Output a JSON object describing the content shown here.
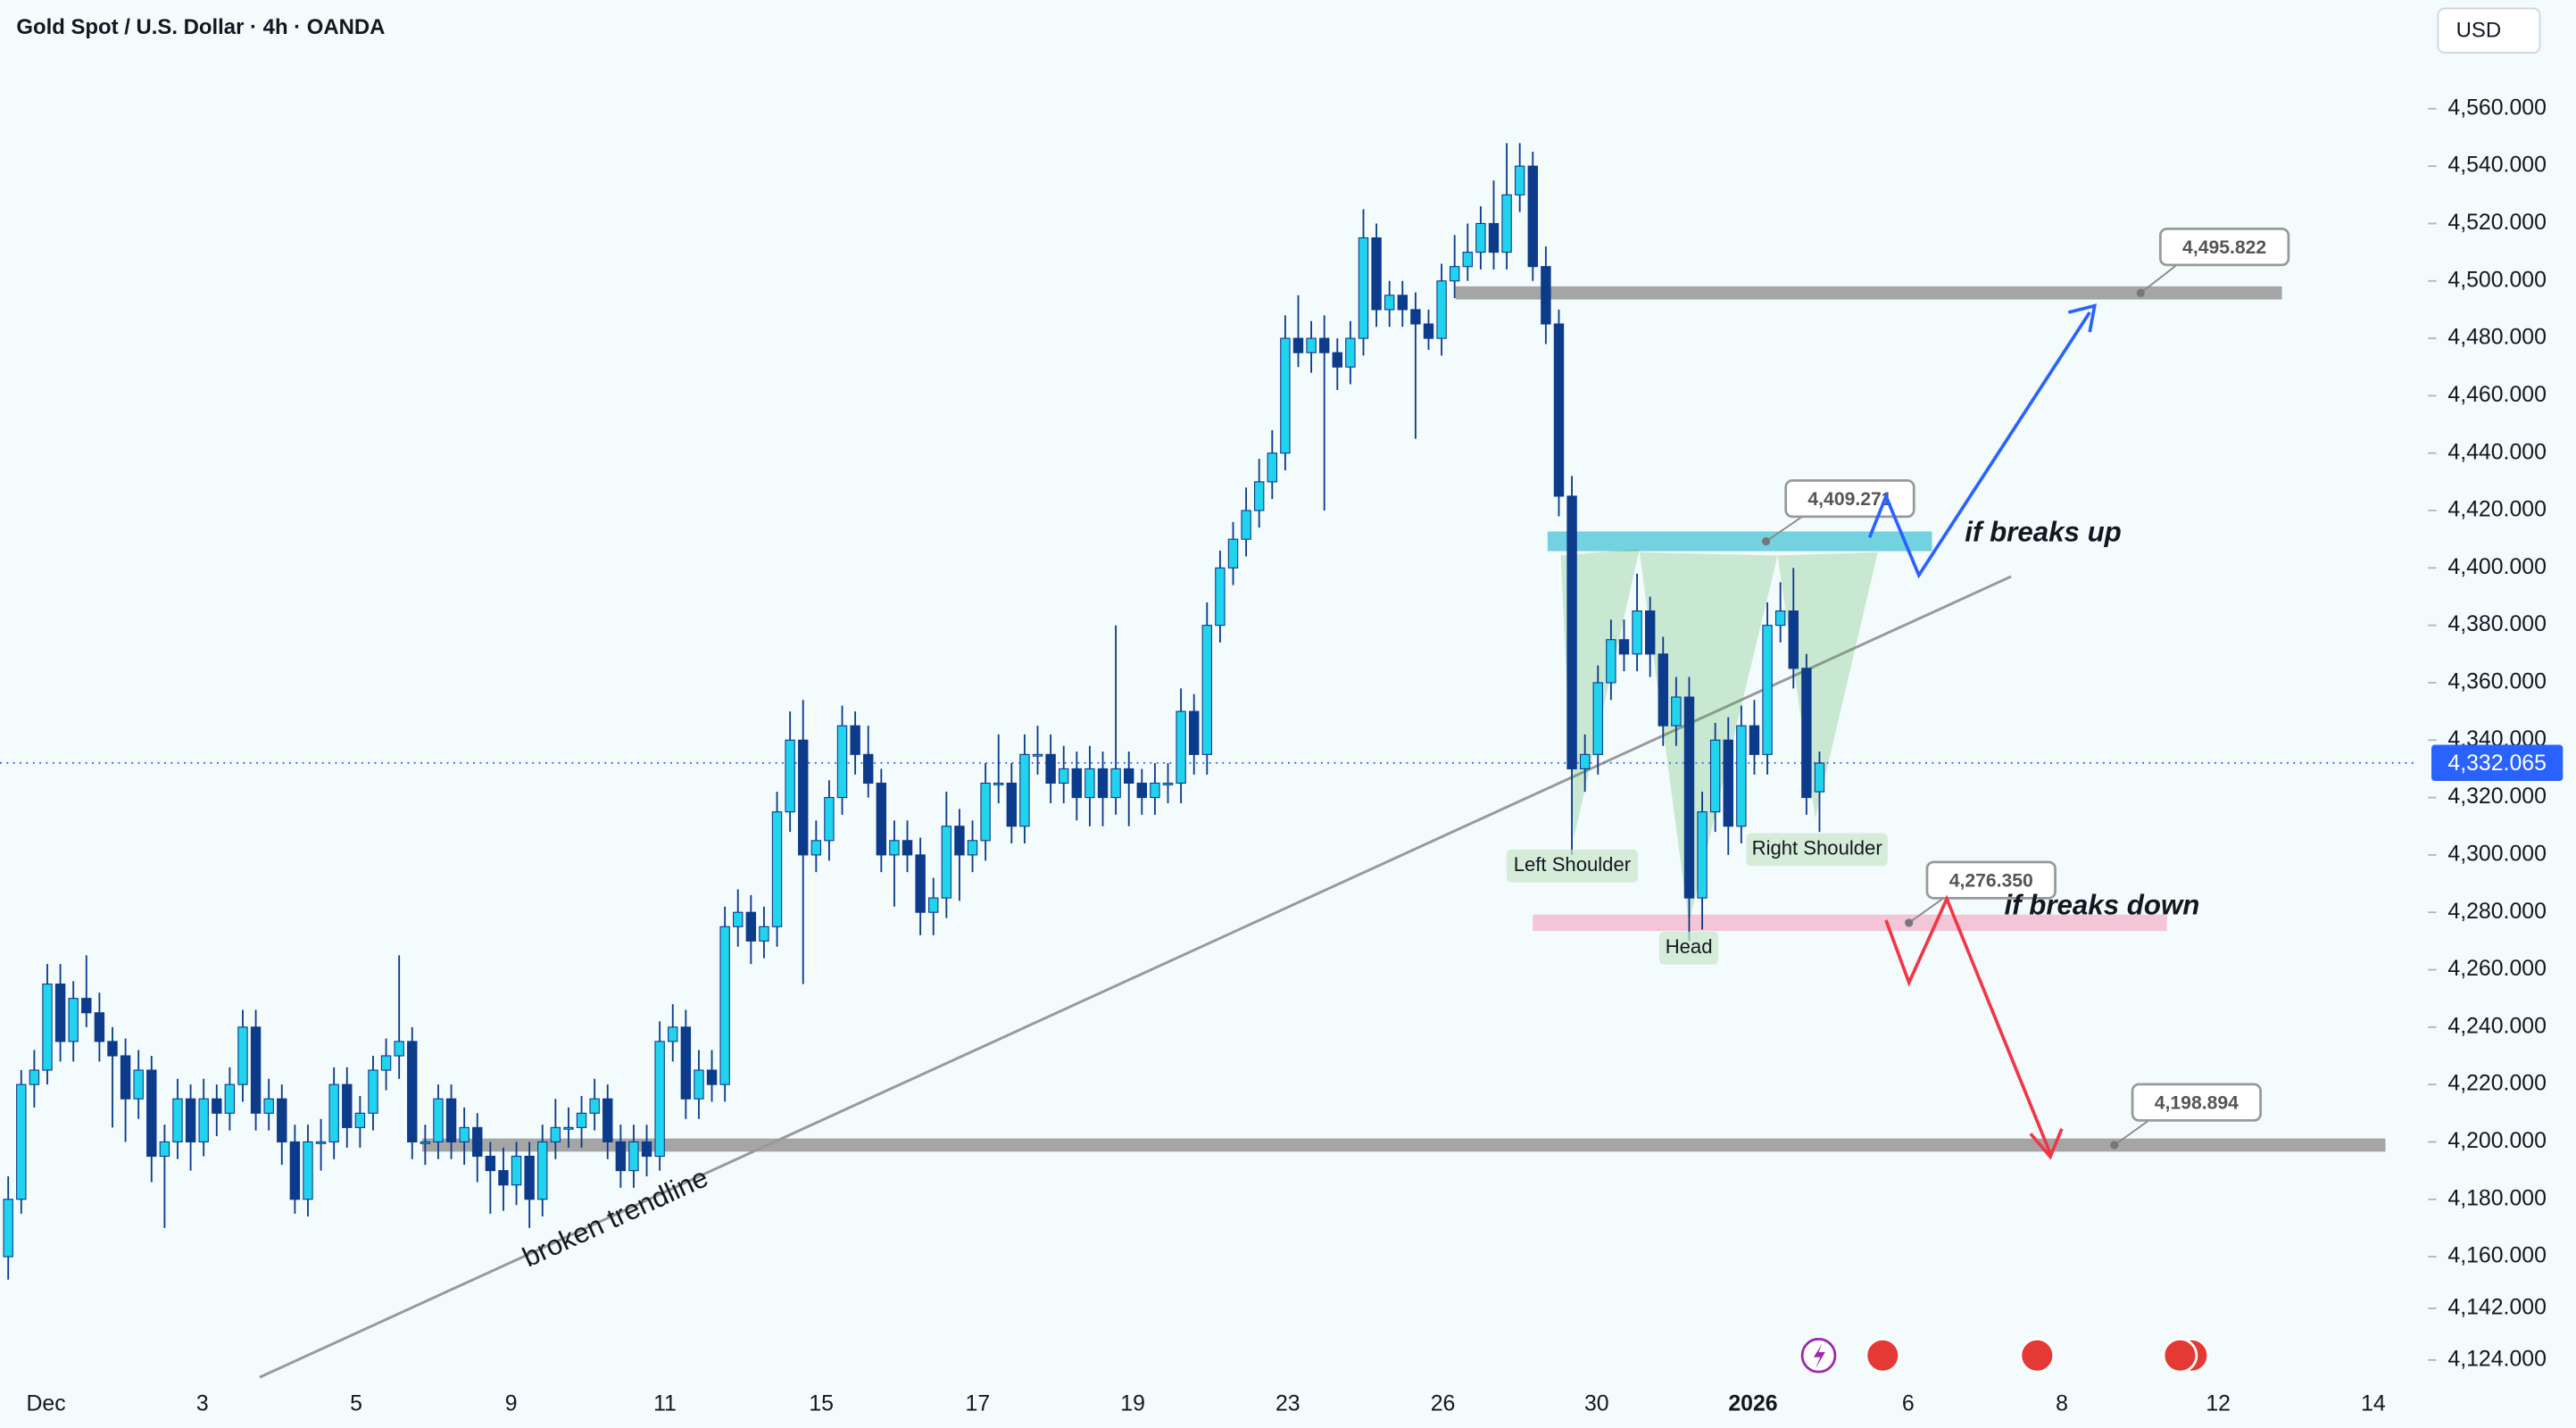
{
  "chart_data": {
    "type": "candlestick",
    "title": "Gold Spot / U.S. Dollar · 4h · OANDA",
    "currency": "USD",
    "colors": {
      "up": "#22d3ee",
      "down": "#0d3b8c"
    },
    "ohlc": [
      [
        4160,
        4188,
        4152,
        4180
      ],
      [
        4180,
        4225,
        4175,
        4220
      ],
      [
        4220,
        4232,
        4212,
        4225
      ],
      [
        4225,
        4262,
        4220,
        4255
      ],
      [
        4255,
        4262,
        4228,
        4235
      ],
      [
        4235,
        4256,
        4228,
        4250
      ],
      [
        4250,
        4265,
        4240,
        4245
      ],
      [
        4245,
        4252,
        4228,
        4235
      ],
      [
        4235,
        4240,
        4205,
        4230
      ],
      [
        4230,
        4236,
        4200,
        4215
      ],
      [
        4215,
        4232,
        4208,
        4225
      ],
      [
        4225,
        4230,
        4186,
        4195
      ],
      [
        4195,
        4206,
        4170,
        4200
      ],
      [
        4200,
        4222,
        4194,
        4215
      ],
      [
        4215,
        4220,
        4190,
        4200
      ],
      [
        4200,
        4222,
        4195,
        4215
      ],
      [
        4215,
        4220,
        4202,
        4210
      ],
      [
        4210,
        4226,
        4204,
        4220
      ],
      [
        4220,
        4246,
        4214,
        4240
      ],
      [
        4240,
        4246,
        4204,
        4210
      ],
      [
        4210,
        4222,
        4204,
        4215
      ],
      [
        4215,
        4220,
        4192,
        4200
      ],
      [
        4200,
        4206,
        4175,
        4180
      ],
      [
        4180,
        4206,
        4174,
        4200
      ],
      [
        4200,
        4208,
        4190,
        4200
      ],
      [
        4200,
        4226,
        4194,
        4220
      ],
      [
        4220,
        4226,
        4198,
        4205
      ],
      [
        4205,
        4216,
        4198,
        4210
      ],
      [
        4210,
        4230,
        4204,
        4225
      ],
      [
        4225,
        4236,
        4218,
        4230
      ],
      [
        4230,
        4265,
        4222,
        4235
      ],
      [
        4235,
        4240,
        4194,
        4200
      ],
      [
        4200,
        4206,
        4192,
        4200
      ],
      [
        4200,
        4220,
        4194,
        4215
      ],
      [
        4215,
        4220,
        4194,
        4200
      ],
      [
        4200,
        4212,
        4192,
        4205
      ],
      [
        4205,
        4210,
        4186,
        4195
      ],
      [
        4195,
        4200,
        4175,
        4190
      ],
      [
        4190,
        4198,
        4176,
        4185
      ],
      [
        4185,
        4200,
        4178,
        4195
      ],
      [
        4195,
        4200,
        4170,
        4180
      ],
      [
        4180,
        4206,
        4174,
        4200
      ],
      [
        4200,
        4215,
        4194,
        4205
      ],
      [
        4205,
        4212,
        4198,
        4205
      ],
      [
        4205,
        4216,
        4198,
        4210
      ],
      [
        4210,
        4222,
        4204,
        4215
      ],
      [
        4215,
        4220,
        4194,
        4200
      ],
      [
        4200,
        4206,
        4184,
        4190
      ],
      [
        4190,
        4206,
        4184,
        4200
      ],
      [
        4200,
        4206,
        4188,
        4195
      ],
      [
        4195,
        4242,
        4190,
        4235
      ],
      [
        4235,
        4248,
        4228,
        4240
      ],
      [
        4240,
        4246,
        4208,
        4215
      ],
      [
        4215,
        4232,
        4208,
        4225
      ],
      [
        4225,
        4232,
        4214,
        4220
      ],
      [
        4220,
        4282,
        4214,
        4275
      ],
      [
        4275,
        4288,
        4268,
        4280
      ],
      [
        4280,
        4286,
        4262,
        4270
      ],
      [
        4270,
        4282,
        4264,
        4275
      ],
      [
        4275,
        4322,
        4268,
        4315
      ],
      [
        4315,
        4350,
        4308,
        4340
      ],
      [
        4340,
        4354,
        4255,
        4300
      ],
      [
        4300,
        4312,
        4294,
        4305
      ],
      [
        4305,
        4326,
        4298,
        4320
      ],
      [
        4320,
        4352,
        4314,
        4345
      ],
      [
        4345,
        4350,
        4328,
        4335
      ],
      [
        4335,
        4345,
        4320,
        4325
      ],
      [
        4325,
        4330,
        4294,
        4300
      ],
      [
        4300,
        4312,
        4282,
        4305
      ],
      [
        4305,
        4312,
        4294,
        4300
      ],
      [
        4300,
        4306,
        4272,
        4280
      ],
      [
        4280,
        4292,
        4272,
        4285
      ],
      [
        4285,
        4322,
        4278,
        4310
      ],
      [
        4310,
        4316,
        4284,
        4300
      ],
      [
        4300,
        4312,
        4294,
        4305
      ],
      [
        4305,
        4332,
        4298,
        4325
      ],
      [
        4325,
        4342,
        4318,
        4325
      ],
      [
        4325,
        4332,
        4304,
        4310
      ],
      [
        4310,
        4342,
        4304,
        4335
      ],
      [
        4335,
        4345,
        4328,
        4335
      ],
      [
        4335,
        4342,
        4318,
        4325
      ],
      [
        4325,
        4338,
        4318,
        4330
      ],
      [
        4330,
        4336,
        4312,
        4320
      ],
      [
        4320,
        4338,
        4310,
        4330
      ],
      [
        4330,
        4336,
        4310,
        4320
      ],
      [
        4320,
        4380,
        4314,
        4330
      ],
      [
        4330,
        4336,
        4310,
        4325
      ],
      [
        4325,
        4330,
        4314,
        4320
      ],
      [
        4320,
        4332,
        4314,
        4325
      ],
      [
        4325,
        4332,
        4318,
        4325
      ],
      [
        4325,
        4358,
        4318,
        4350
      ],
      [
        4350,
        4356,
        4328,
        4335
      ],
      [
        4335,
        4388,
        4328,
        4380
      ],
      [
        4380,
        4406,
        4374,
        4400
      ],
      [
        4400,
        4416,
        4394,
        4410
      ],
      [
        4410,
        4428,
        4404,
        4420
      ],
      [
        4420,
        4438,
        4414,
        4430
      ],
      [
        4430,
        4448,
        4424,
        4440
      ],
      [
        4440,
        4488,
        4434,
        4480
      ],
      [
        4480,
        4495,
        4470,
        4475
      ],
      [
        4475,
        4486,
        4468,
        4480
      ],
      [
        4480,
        4488,
        4420,
        4475
      ],
      [
        4475,
        4480,
        4462,
        4470
      ],
      [
        4470,
        4486,
        4464,
        4480
      ],
      [
        4480,
        4525,
        4474,
        4515
      ],
      [
        4515,
        4520,
        4484,
        4490
      ],
      [
        4490,
        4500,
        4484,
        4495
      ],
      [
        4495,
        4500,
        4484,
        4490
      ],
      [
        4490,
        4496,
        4445,
        4485
      ],
      [
        4485,
        4490,
        4476,
        4480
      ],
      [
        4480,
        4506,
        4474,
        4500
      ],
      [
        4500,
        4516,
        4494,
        4505
      ],
      [
        4505,
        4520,
        4500,
        4510
      ],
      [
        4510,
        4526,
        4504,
        4520
      ],
      [
        4520,
        4535,
        4504,
        4510
      ],
      [
        4510,
        4548,
        4504,
        4530
      ],
      [
        4530,
        4548,
        4524,
        4540
      ],
      [
        4540,
        4545,
        4500,
        4505
      ],
      [
        4505,
        4512,
        4478,
        4485
      ],
      [
        4485,
        4490,
        4418,
        4425
      ],
      [
        4425,
        4432,
        4300,
        4330
      ],
      [
        4330,
        4342,
        4322,
        4335
      ],
      [
        4335,
        4366,
        4328,
        4360
      ],
      [
        4360,
        4382,
        4354,
        4375
      ],
      [
        4375,
        4382,
        4364,
        4370
      ],
      [
        4370,
        4398,
        4364,
        4385
      ],
      [
        4385,
        4390,
        4362,
        4370
      ],
      [
        4370,
        4376,
        4338,
        4345
      ],
      [
        4345,
        4362,
        4338,
        4355
      ],
      [
        4355,
        4362,
        4270,
        4285
      ],
      [
        4285,
        4322,
        4274,
        4315
      ],
      [
        4315,
        4346,
        4308,
        4340
      ],
      [
        4340,
        4348,
        4300,
        4310
      ],
      [
        4310,
        4352,
        4304,
        4345
      ],
      [
        4345,
        4354,
        4328,
        4335
      ],
      [
        4335,
        4388,
        4328,
        4380
      ],
      [
        4380,
        4395,
        4374,
        4385
      ],
      [
        4385,
        4400,
        4358,
        4365
      ],
      [
        4365,
        4370,
        4314,
        4320
      ],
      [
        4322,
        4336,
        4308,
        4332
      ]
    ],
    "xlim": [
      -0.63,
      184.7
    ],
    "xticks": [
      {
        "value": 2.9,
        "label": "Dec"
      },
      {
        "value": 14.9,
        "label": "3"
      },
      {
        "value": 26.7,
        "label": "5"
      },
      {
        "value": 38.6,
        "label": "9"
      },
      {
        "value": 50.4,
        "label": "11"
      },
      {
        "value": 62.4,
        "label": "15"
      },
      {
        "value": 74.4,
        "label": "17"
      },
      {
        "value": 86.3,
        "label": "19"
      },
      {
        "value": 98.2,
        "label": "23"
      },
      {
        "value": 110.1,
        "label": "26"
      },
      {
        "value": 121.9,
        "label": "30"
      },
      {
        "value": 133.9,
        "label": "2026"
      },
      {
        "value": 145.8,
        "label": "6"
      },
      {
        "value": 157.6,
        "label": "8"
      },
      {
        "value": 169.6,
        "label": "12"
      },
      {
        "value": 181.5,
        "label": "14"
      }
    ],
    "ylim": [
      4100.4,
      4597.8
    ],
    "yticks": [
      {
        "value": 4124,
        "label": "4,124.000"
      },
      {
        "value": 4142,
        "label": "4,142.000"
      },
      {
        "value": 4160,
        "label": "4,160.000"
      },
      {
        "value": 4180,
        "label": "4,180.000"
      },
      {
        "value": 4200,
        "label": "4,200.000"
      },
      {
        "value": 4220,
        "label": "4,220.000"
      },
      {
        "value": 4240,
        "label": "4,240.000"
      },
      {
        "value": 4260,
        "label": "4,260.000"
      },
      {
        "value": 4280,
        "label": "4,280.000"
      },
      {
        "value": 4300,
        "label": "4,300.000"
      },
      {
        "value": 4320,
        "label": "4,320.000"
      },
      {
        "value": 4340,
        "label": "4,340.000"
      },
      {
        "value": 4360,
        "label": "4,360.000"
      },
      {
        "value": 4380,
        "label": "4,380.000"
      },
      {
        "value": 4400,
        "label": "4,400.000"
      },
      {
        "value": 4420,
        "label": "4,420.000"
      },
      {
        "value": 4440,
        "label": "4,440.000"
      },
      {
        "value": 4460,
        "label": "4,460.000"
      },
      {
        "value": 4480,
        "label": "4,480.000"
      },
      {
        "value": 4500,
        "label": "4,500.000"
      },
      {
        "value": 4520,
        "label": "4,520.000"
      },
      {
        "value": 4540,
        "label": "4,540.000"
      },
      {
        "value": 4560,
        "label": "4,560.000"
      }
    ],
    "last_price": {
      "value": 4332.065,
      "label": "4,332.065"
    },
    "levels": [
      {
        "value": 4495.822,
        "label": "4,495.822"
      },
      {
        "value": 4409.271,
        "label": "4,409.271"
      },
      {
        "value": 4276.35,
        "label": "4,276.350"
      },
      {
        "value": 4198.894,
        "label": "4,198.894"
      }
    ],
    "trendline": {
      "x": [
        19.3,
        153.7
      ],
      "y": [
        4118,
        4397
      ]
    },
    "annotations": [
      "if breaks up",
      "if breaks down",
      "Left Shoulder",
      "Head",
      "Right Shoulder",
      "broken trendline"
    ]
  }
}
